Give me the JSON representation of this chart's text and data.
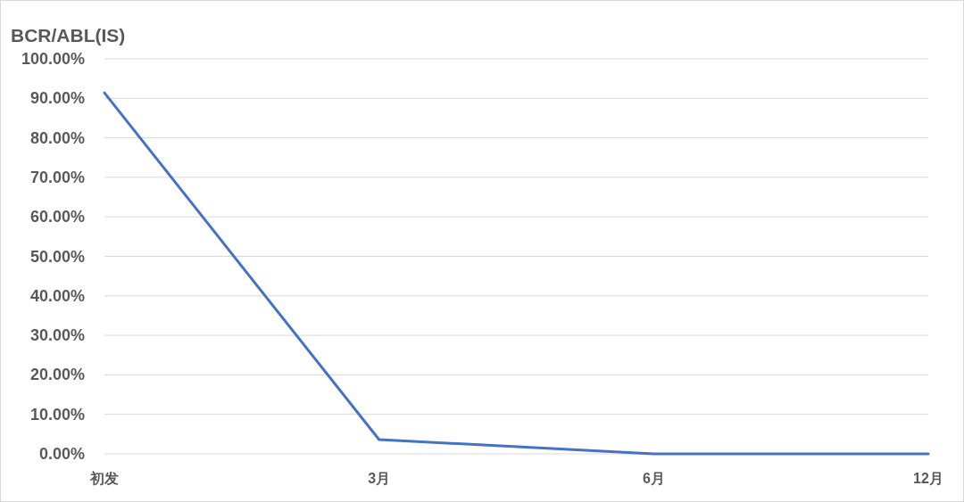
{
  "chart_data": {
    "type": "line",
    "ylabel": "BCR/ABL(IS)",
    "categories": [
      "初发",
      "3月",
      "6月",
      "12月"
    ],
    "series": [
      {
        "color": "#4472c4",
        "values": [
          91.4,
          3.6,
          0,
          0
        ]
      }
    ],
    "ylim": [
      0,
      100
    ],
    "yticks": [
      {
        "value": 0,
        "label": "0.00%"
      },
      {
        "value": 10,
        "label": "10.00%"
      },
      {
        "value": 20,
        "label": "20.00%"
      },
      {
        "value": 30,
        "label": "30.00%"
      },
      {
        "value": 40,
        "label": "40.00%"
      },
      {
        "value": 50,
        "label": "50.00%"
      },
      {
        "value": 60,
        "label": "60.00%"
      },
      {
        "value": 70,
        "label": "70.00%"
      },
      {
        "value": 80,
        "label": "80.00%"
      },
      {
        "value": 90,
        "label": "90.00%"
      },
      {
        "value": 100,
        "label": "100.00%"
      }
    ],
    "grid": "y"
  }
}
